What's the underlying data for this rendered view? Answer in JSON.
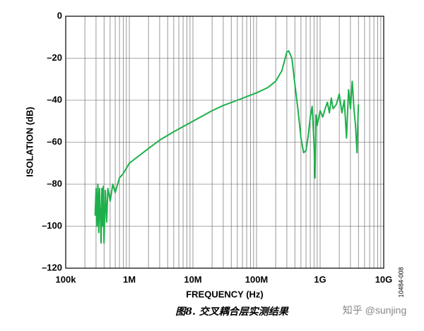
{
  "chart_data": {
    "type": "line",
    "xscale": "log",
    "grid": true,
    "xlabel": "FREQUENCY (Hz)",
    "ylabel": "ISOLATION (dB)",
    "caption": "图8. 交叉耦合层实测结果",
    "watermark": "知乎 @sunjing",
    "figure_id": "10484-008",
    "xlim": [
      100000,
      10000000000
    ],
    "ylim": [
      -120,
      0
    ],
    "xticks": [
      {
        "value": 100000,
        "label": "100k"
      },
      {
        "value": 1000000,
        "label": "1M"
      },
      {
        "value": 10000000,
        "label": "10M"
      },
      {
        "value": 100000000,
        "label": "100M"
      },
      {
        "value": 1000000000,
        "label": "1G"
      },
      {
        "value": 10000000000,
        "label": "10G"
      }
    ],
    "yticks": [
      {
        "value": -120,
        "label": "–120"
      },
      {
        "value": -100,
        "label": "–100"
      },
      {
        "value": -80,
        "label": "–80"
      },
      {
        "value": -60,
        "label": "–60"
      },
      {
        "value": -40,
        "label": "–40"
      },
      {
        "value": -20,
        "label": "–20"
      },
      0
    ],
    "series": [
      {
        "color": "#1db04a",
        "x": [
          290000,
          300000,
          310000,
          320000,
          330000,
          340000,
          350000,
          360000,
          370000,
          380000,
          390000,
          400000,
          420000,
          440000,
          460000,
          500000,
          550000,
          600000,
          700000,
          800000,
          1000000,
          2000000,
          3000000,
          5000000,
          10000000,
          20000000,
          30000000,
          50000000,
          100000000,
          150000000,
          200000000,
          250000000,
          300000000,
          320000000,
          360000000,
          400000000,
          450000000,
          500000000,
          550000000,
          600000000,
          650000000,
          700000000,
          750000000,
          800000000,
          830000000,
          860000000,
          900000000,
          1000000000,
          1100000000,
          1200000000,
          1300000000,
          1400000000,
          1500000000,
          1600000000,
          1800000000,
          2000000000,
          2200000000,
          2400000000,
          2600000000,
          2800000000,
          3000000000,
          3200000000,
          3400000000,
          3600000000,
          3800000000,
          4000000000
        ],
        "values": [
          -95,
          -82,
          -100,
          -80,
          -103,
          -82,
          -95,
          -108,
          -82,
          -100,
          -81,
          -108,
          -83,
          -98,
          -82,
          -88,
          -80,
          -84,
          -77,
          -75,
          -70,
          -63,
          -59,
          -55,
          -50,
          -45,
          -42.5,
          -40,
          -36.5,
          -34,
          -31,
          -26,
          -17,
          -16.5,
          -20,
          -32,
          -45,
          -58,
          -65,
          -64,
          -57,
          -48,
          -43,
          -60,
          -77,
          -47,
          -52,
          -45,
          -48,
          -44,
          -41,
          -46,
          -39,
          -44,
          -42,
          -37,
          -46,
          -40,
          -58,
          -35,
          -44,
          -31,
          -44,
          -52,
          -65,
          -42
        ]
      }
    ]
  }
}
